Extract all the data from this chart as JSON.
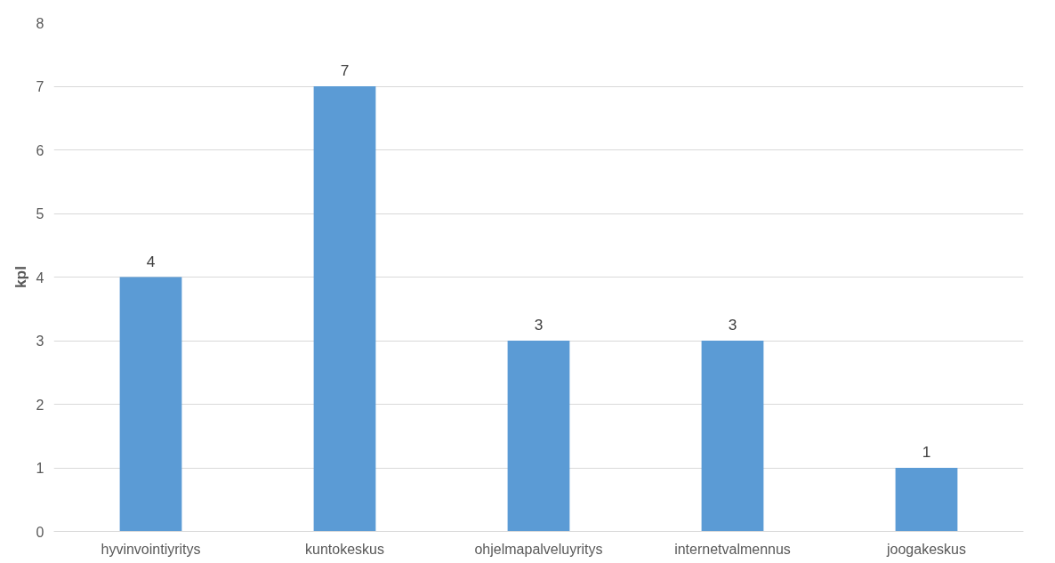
{
  "chart_data": {
    "type": "bar",
    "ylabel": "kpl",
    "categories": [
      "hyvinvointiyritys",
      "kuntokeskus",
      "ohjelmapalveluyritys",
      "internetvalmennus",
      "joogakeskus"
    ],
    "values": [
      4,
      7,
      3,
      3,
      1
    ],
    "color": "#5b9bd5",
    "ylim": [
      0,
      8
    ],
    "yticks": [
      0,
      1,
      2,
      3,
      4,
      5,
      6,
      7,
      8
    ],
    "grid": "y",
    "data_labels": true
  }
}
